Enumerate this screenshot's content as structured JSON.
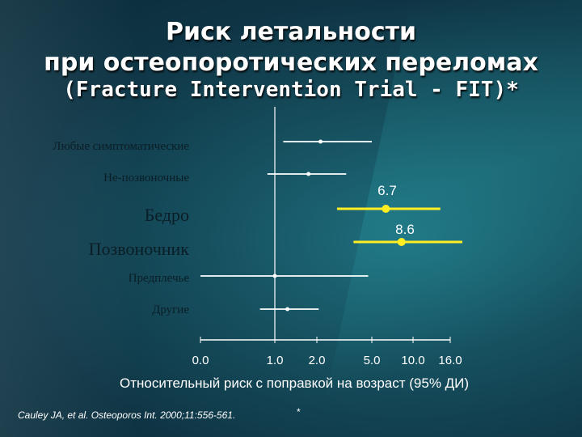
{
  "slide": {
    "title_line1": "Риск летальности",
    "title_line2": "при остеопоротических переломах",
    "title_line3": "(Fracture Intervention Trial - FIT)*",
    "citation": "Cauley JA, et al. Osteoporos Int. 2000;11:556-561.",
    "footnote_mark": "*"
  },
  "chart_data": {
    "type": "scatter",
    "subtype": "forest-plot",
    "xlabel": "Относительный риск с поправкой на возраст (95% ДИ)",
    "x_ticks": [
      "0.0",
      "1.0",
      "2.0",
      "5.0",
      "10.0",
      "16.0"
    ],
    "x_scale": "non-linear",
    "reference_line": "1.0",
    "categories": [
      {
        "label": "Любые симптоматические",
        "estimate": 2.2,
        "ci": [
          1.2,
          5.0
        ],
        "highlight": false,
        "value_label": ""
      },
      {
        "label": "Не-позвоночные",
        "estimate": 1.8,
        "ci": [
          0.9,
          3.6
        ],
        "highlight": false,
        "value_label": ""
      },
      {
        "label": "Бедро",
        "estimate": 6.7,
        "ci": [
          3.1,
          14.4
        ],
        "highlight": true,
        "value_label": "6.7"
      },
      {
        "label": "Позвоночник",
        "estimate": 8.6,
        "ci": [
          4.0,
          18.6
        ],
        "highlight": true,
        "value_label": "8.6"
      },
      {
        "label": "Предплечье",
        "estimate": 1.0,
        "ci": [
          0.0,
          4.8
        ],
        "highlight": false,
        "value_label": ""
      },
      {
        "label": "Другие",
        "estimate": 1.3,
        "ci": [
          0.8,
          2.1
        ],
        "highlight": false,
        "value_label": ""
      }
    ],
    "colors": {
      "normal": "#ffffff",
      "highlight": "#ffee22",
      "axis": "#ffffff"
    }
  }
}
